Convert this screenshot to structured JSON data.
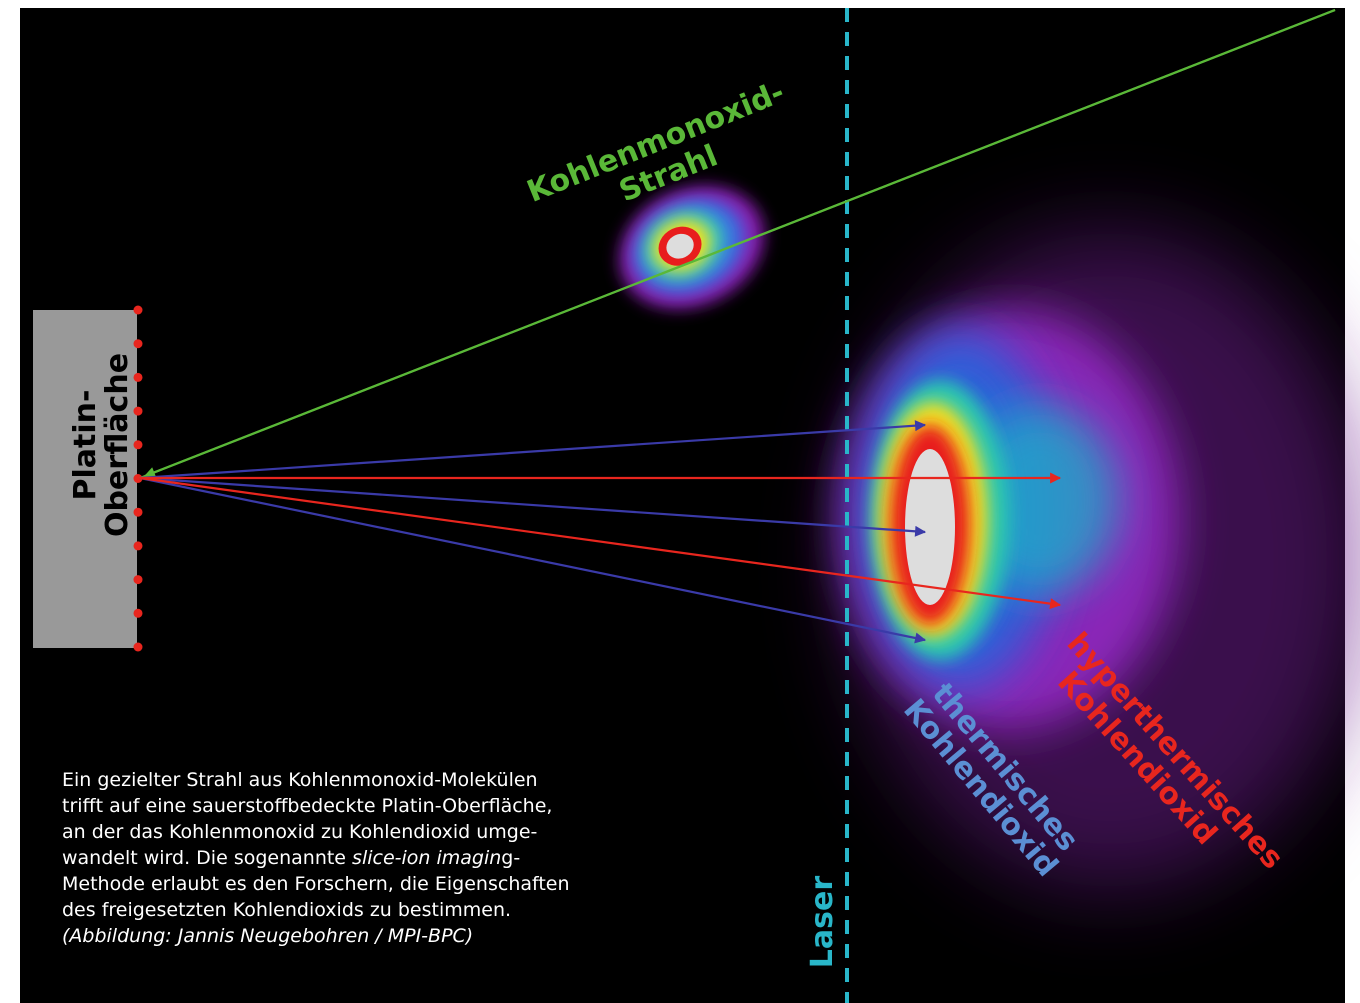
{
  "beam_label": {
    "line1": "Kohlenmonoxid-",
    "line2": "Strahl"
  },
  "surface_label": {
    "line1": "Platin-",
    "line2": "Oberfläche"
  },
  "laser_label": "Laser",
  "thermal_label": {
    "line1": "thermisches",
    "line2": "Kohlendioxid"
  },
  "hyperthermal_label": {
    "line1": "hyperthermisches",
    "line2": "Kohlendioxid"
  },
  "caption": {
    "line1": "Ein gezielter Strahl aus Kohlenmonoxid-Molekülen",
    "line2": "trifft auf eine sauerstoffbedeckte Platin-Oberfläche,",
    "line3": "an der das Kohlenmonoxid zu Kohlendioxid umge-",
    "line4": {
      "before": "wandelt wird. Die sogenannte ",
      "italic": "slice-ion imagin",
      "after": "g-"
    },
    "line5": "Methode erlaubt es den Forschern, die Eigenschaften",
    "line6": "des freigesetzten Kohlendioxids zu bestimmen.",
    "credit": "(Abbildung: Jannis Neugebohren / MPI-BPC)"
  }
}
